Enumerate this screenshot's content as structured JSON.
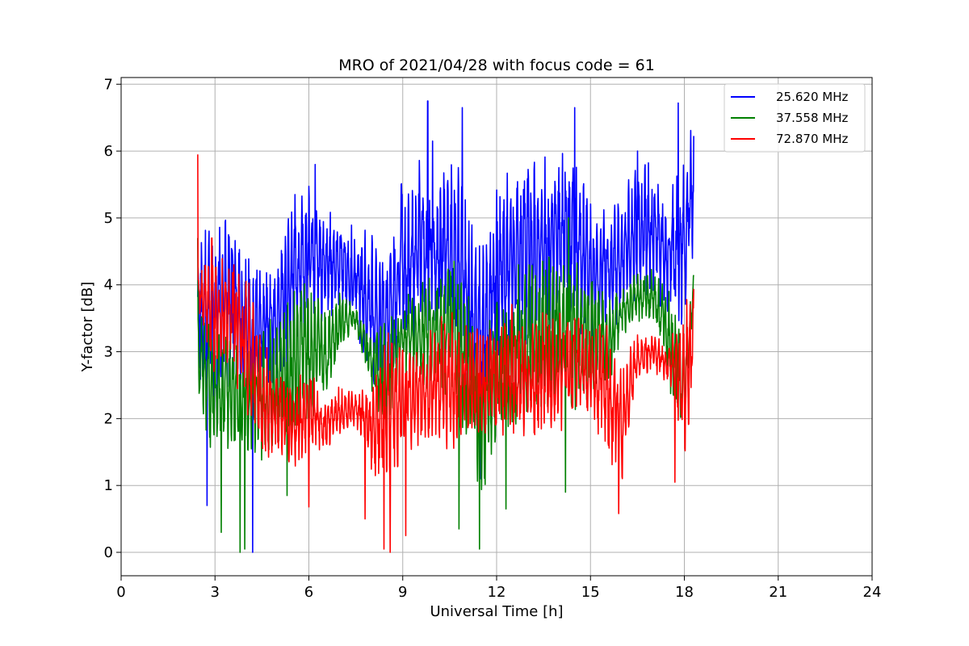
{
  "chart_data": {
    "type": "line",
    "title": "MRO of 2021/04/28 with focus code = 61",
    "xlabel": "Universal Time [h]",
    "ylabel": "Y-factor [dB]",
    "xlim": [
      0,
      24
    ],
    "ylim": [
      -0.35,
      7.1
    ],
    "xticks": [
      0,
      3,
      6,
      9,
      12,
      15,
      18,
      21,
      24
    ],
    "yticks": [
      0,
      1,
      2,
      3,
      4,
      5,
      6,
      7
    ],
    "grid": true,
    "legend_position": "top-right",
    "series": [
      {
        "name": "25.620 MHz",
        "color": "#0000ff",
        "x": [
          2.45,
          3.0,
          3.5,
          4.0,
          4.5,
          5.0,
          5.5,
          6.0,
          6.5,
          7.0,
          7.5,
          8.0,
          8.5,
          9.0,
          9.5,
          10.0,
          10.5,
          11.0,
          11.5,
          12.0,
          12.5,
          13.0,
          13.5,
          14.0,
          14.5,
          15.0,
          15.5,
          16.0,
          16.5,
          17.0,
          17.5,
          18.0,
          18.3
        ],
        "low": [
          2.2,
          2.0,
          2.5,
          2.2,
          2.5,
          2.2,
          3.0,
          3.4,
          3.3,
          3.6,
          3.3,
          2.5,
          2.2,
          2.8,
          3.2,
          3.3,
          3.2,
          2.5,
          1.8,
          2.8,
          2.9,
          3.0,
          3.0,
          3.3,
          3.3,
          2.9,
          3.4,
          3.4,
          3.8,
          3.8,
          3.4,
          3.3,
          4.5
        ],
        "high": [
          5.0,
          4.9,
          5.2,
          4.6,
          4.2,
          4.5,
          5.4,
          5.5,
          5.3,
          5.0,
          5.0,
          4.8,
          4.6,
          5.8,
          6.0,
          5.3,
          6.0,
          5.6,
          4.6,
          5.5,
          5.8,
          6.2,
          6.0,
          6.2,
          6.0,
          5.4,
          5.2,
          5.4,
          5.9,
          5.8,
          5.4,
          6.0,
          6.5
        ],
        "dips": [
          [
            2.75,
            0.7
          ],
          [
            4.2,
            0.0
          ],
          [
            11.5,
            1.1
          ],
          [
            10.9,
            2.0
          ]
        ],
        "peaks": [
          [
            9.8,
            6.75
          ],
          [
            10.9,
            6.65
          ],
          [
            14.5,
            6.65
          ],
          [
            17.8,
            6.72
          ],
          [
            16.5,
            6.0
          ],
          [
            9.95,
            6.15
          ],
          [
            6.2,
            5.8
          ]
        ]
      },
      {
        "name": "37.558 MHz",
        "color": "#008000",
        "x": [
          2.45,
          3.0,
          3.5,
          4.0,
          4.5,
          5.0,
          5.5,
          6.0,
          6.5,
          7.0,
          7.5,
          8.0,
          8.5,
          9.0,
          9.5,
          10.0,
          10.5,
          11.0,
          11.5,
          12.0,
          12.5,
          13.0,
          13.5,
          14.0,
          14.5,
          15.0,
          15.5,
          16.0,
          16.5,
          17.0,
          17.5,
          18.0,
          18.3
        ],
        "low": [
          1.6,
          1.5,
          1.4,
          1.5,
          1.2,
          1.4,
          1.5,
          1.9,
          2.1,
          3.0,
          3.3,
          2.4,
          1.7,
          2.6,
          2.4,
          2.4,
          2.2,
          1.6,
          0.6,
          1.7,
          1.8,
          2.1,
          2.1,
          2.3,
          2.1,
          2.2,
          2.3,
          3.2,
          3.4,
          3.4,
          2.4,
          1.6,
          3.8
        ],
        "high": [
          4.0,
          3.5,
          3.2,
          3.1,
          3.5,
          3.6,
          4.3,
          4.1,
          3.8,
          3.9,
          3.7,
          3.3,
          3.6,
          4.0,
          4.0,
          4.2,
          4.5,
          4.2,
          3.3,
          3.8,
          3.9,
          4.4,
          4.5,
          4.6,
          4.5,
          4.3,
          3.9,
          4.0,
          4.2,
          4.3,
          4.0,
          3.2,
          4.2
        ],
        "dips": [
          [
            3.2,
            0.3
          ],
          [
            3.8,
            0.0
          ],
          [
            3.95,
            0.05
          ],
          [
            11.45,
            0.05
          ],
          [
            12.3,
            0.65
          ],
          [
            14.2,
            0.9
          ],
          [
            5.3,
            0.85
          ],
          [
            10.8,
            0.35
          ]
        ],
        "peaks": [
          [
            2.45,
            4.7
          ],
          [
            14.3,
            5.0
          ],
          [
            12.7,
            4.3
          ]
        ]
      },
      {
        "name": "72.870 MHz",
        "color": "#ff0000",
        "x": [
          2.45,
          3.0,
          3.5,
          4.0,
          4.5,
          5.0,
          5.5,
          6.0,
          6.5,
          7.0,
          7.5,
          8.0,
          8.5,
          9.0,
          9.5,
          10.0,
          10.5,
          11.0,
          11.5,
          12.0,
          12.5,
          13.0,
          13.5,
          14.0,
          14.5,
          15.0,
          15.5,
          16.0,
          16.5,
          17.0,
          17.5,
          18.0,
          18.3
        ],
        "low": [
          3.5,
          2.6,
          2.8,
          1.8,
          1.3,
          1.4,
          1.2,
          1.5,
          1.5,
          1.7,
          1.9,
          1.2,
          0.8,
          1.4,
          1.6,
          1.6,
          1.5,
          1.7,
          1.7,
          1.6,
          1.7,
          1.6,
          1.8,
          1.7,
          2.0,
          2.0,
          1.5,
          0.9,
          2.6,
          2.7,
          2.5,
          1.2,
          2.4
        ],
        "high": [
          4.2,
          4.5,
          4.3,
          4.4,
          3.2,
          2.8,
          2.6,
          2.8,
          2.3,
          2.5,
          2.4,
          2.6,
          3.5,
          3.3,
          3.1,
          3.4,
          3.7,
          3.4,
          3.4,
          3.5,
          3.8,
          3.3,
          3.7,
          3.6,
          3.6,
          3.4,
          3.5,
          2.8,
          3.3,
          3.3,
          3.1,
          3.9,
          4.0
        ],
        "dips": [
          [
            8.4,
            0.05
          ],
          [
            8.6,
            0.0
          ],
          [
            9.1,
            0.25
          ],
          [
            15.9,
            0.58
          ],
          [
            6.0,
            0.68
          ],
          [
            7.8,
            0.5
          ],
          [
            17.7,
            1.05
          ]
        ],
        "peaks": [
          [
            2.45,
            5.95
          ],
          [
            2.9,
            4.7
          ],
          [
            3.6,
            4.3
          ]
        ]
      }
    ]
  }
}
